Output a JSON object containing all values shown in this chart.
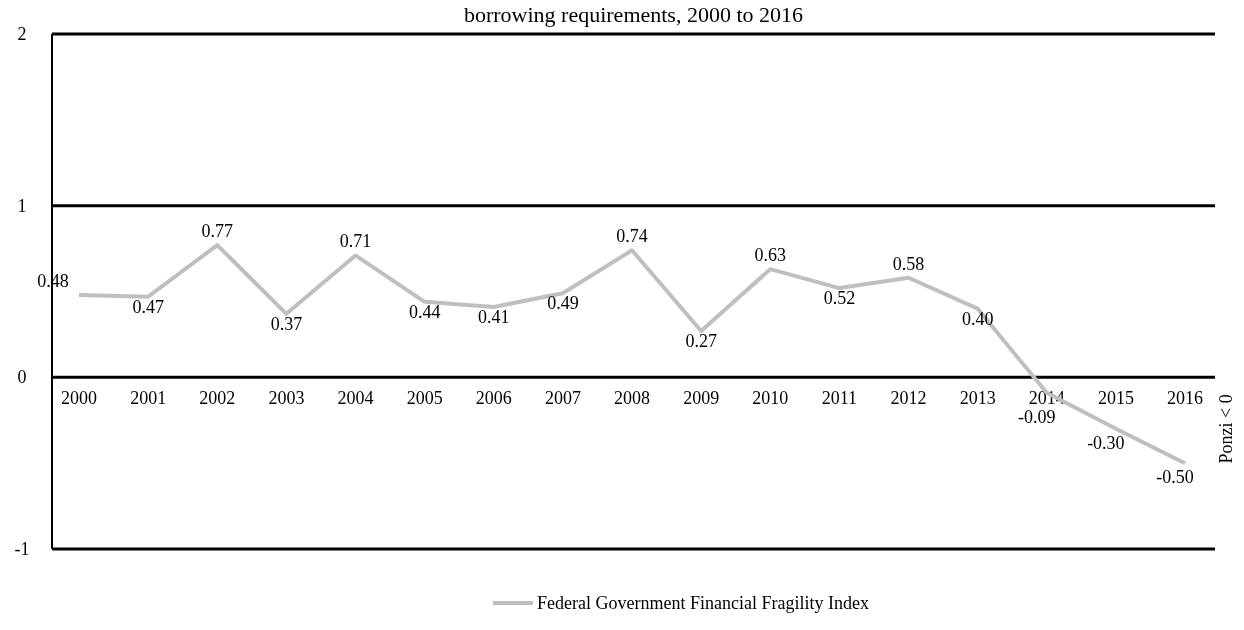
{
  "chart_data": {
    "type": "line",
    "title": "borrowing requirements, 2000 to 2016",
    "categories": [
      "2000",
      "2001",
      "2002",
      "2003",
      "2004",
      "2005",
      "2006",
      "2007",
      "2008",
      "2009",
      "2010",
      "2011",
      "2012",
      "2013",
      "2014",
      "2015",
      "2016"
    ],
    "series": [
      {
        "name": "Federal Government Financial Fragility Index",
        "color": "#bfbfbf",
        "values": [
          0.48,
          0.47,
          0.77,
          0.37,
          0.71,
          0.44,
          0.41,
          0.49,
          0.74,
          0.27,
          0.63,
          0.52,
          0.58,
          0.4,
          -0.09,
          -0.3,
          -0.5
        ],
        "value_labels": [
          "0.48",
          "0.47",
          "0.77",
          "0.37",
          "0.71",
          "0.44",
          "0.41",
          "0.49",
          "0.74",
          "0.27",
          "0.63",
          "0.52",
          "0.58",
          "0.40",
          "-0.09",
          "-0.30",
          "-0.50"
        ]
      }
    ],
    "ylim": [
      -1,
      2
    ],
    "yticks": [
      -1,
      0,
      1,
      2
    ],
    "grid": "y",
    "legend": "bottom",
    "marker": "none",
    "line_style": "solid",
    "annotations": [
      "Ponzi < 0"
    ]
  }
}
